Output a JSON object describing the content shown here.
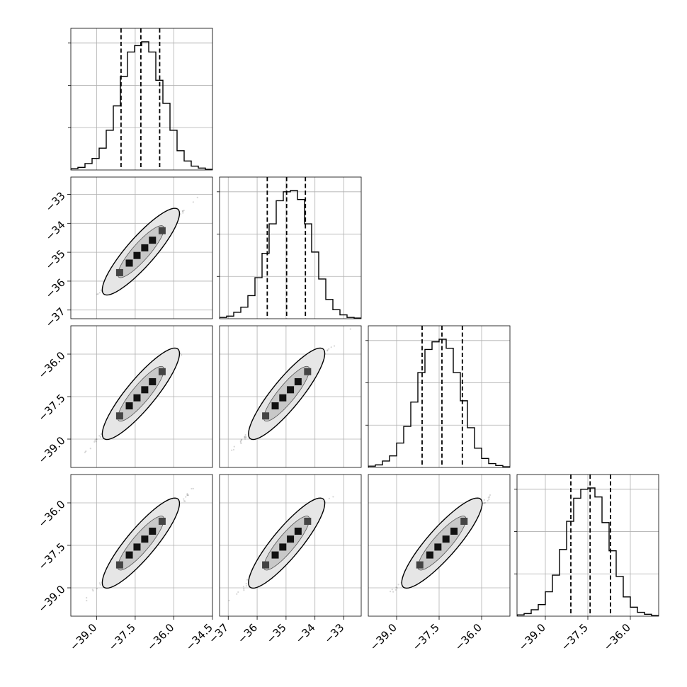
{
  "chart_data": {
    "type": "corner",
    "n_params": 4,
    "title": "",
    "grid": true,
    "ranges": [
      [
        -40.0,
        -34.5
      ],
      [
        -37.3,
        -32.4
      ],
      [
        -40.0,
        -35.0
      ],
      [
        -40.0,
        -35.0
      ]
    ],
    "ticks": [
      [
        -39.0,
        -37.5,
        -36.0,
        -34.5
      ],
      [
        -37,
        -36,
        -35,
        -34,
        -33
      ],
      [
        -39.0,
        -37.5,
        -36.0
      ],
      [
        -39.0,
        -37.5,
        -36.0
      ]
    ],
    "tick_labels": [
      [
        "−39.0",
        "−37.5",
        "−36.0",
        "−34.5"
      ],
      [
        "−37",
        "−36",
        "−35",
        "−34",
        "−33"
      ],
      [
        "−39.0",
        "−37.5",
        "−36.0"
      ],
      [
        "−39.0",
        "−37.5",
        "−36.0"
      ]
    ],
    "quantiles": [
      [
        -38.05,
        -37.28,
        -36.55
      ],
      [
        -35.65,
        -34.98,
        -34.33
      ],
      [
        -38.1,
        -37.4,
        -36.68
      ],
      [
        -38.1,
        -37.42,
        -36.7
      ]
    ],
    "histograms": [
      [
        0.01,
        0.02,
        0.05,
        0.09,
        0.17,
        0.31,
        0.5,
        0.73,
        0.92,
        0.97,
        1.0,
        0.92,
        0.7,
        0.52,
        0.31,
        0.15,
        0.07,
        0.03,
        0.015,
        0.005
      ],
      [
        0.01,
        0.02,
        0.05,
        0.09,
        0.18,
        0.32,
        0.51,
        0.74,
        0.92,
        0.99,
        1.0,
        0.93,
        0.74,
        0.52,
        0.31,
        0.15,
        0.07,
        0.03,
        0.01,
        0.005
      ],
      [
        0.01,
        0.02,
        0.05,
        0.09,
        0.19,
        0.32,
        0.51,
        0.74,
        0.92,
        0.98,
        1.0,
        0.93,
        0.74,
        0.52,
        0.31,
        0.15,
        0.07,
        0.03,
        0.015,
        0.005
      ],
      [
        0.01,
        0.02,
        0.05,
        0.09,
        0.19,
        0.32,
        0.52,
        0.74,
        0.92,
        0.99,
        1.0,
        0.93,
        0.73,
        0.51,
        0.31,
        0.15,
        0.07,
        0.03,
        0.015,
        0.005
      ]
    ],
    "correlation": 0.997,
    "contour_color": "#000000",
    "grid_color": "#b0b0b0"
  }
}
